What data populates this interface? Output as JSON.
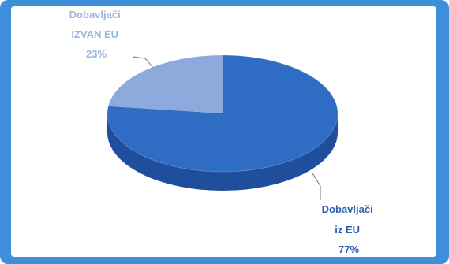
{
  "colors": {
    "frame": "#3d8fd9",
    "panel": "#ffffff",
    "eu_slice": "#2f6cc4",
    "eu_slice_side": "#1f4f9c",
    "non_eu_slice": "#8ea9dc",
    "non_eu_slice_side": "#6f8fcb",
    "label_non_eu": "#9db5e2",
    "label_eu": "#2f5fae",
    "leader_line": "#8a8a8a"
  },
  "chart_data": {
    "type": "pie",
    "style": "3d",
    "slices": [
      {
        "key": "eu",
        "label_lines": [
          "Dobavljači",
          "iz EU",
          "77%"
        ],
        "value": 77
      },
      {
        "key": "non_eu",
        "label_lines": [
          "Dobavljači",
          "IZVAN EU",
          "23%"
        ],
        "value": 23
      }
    ],
    "legend": "none"
  }
}
